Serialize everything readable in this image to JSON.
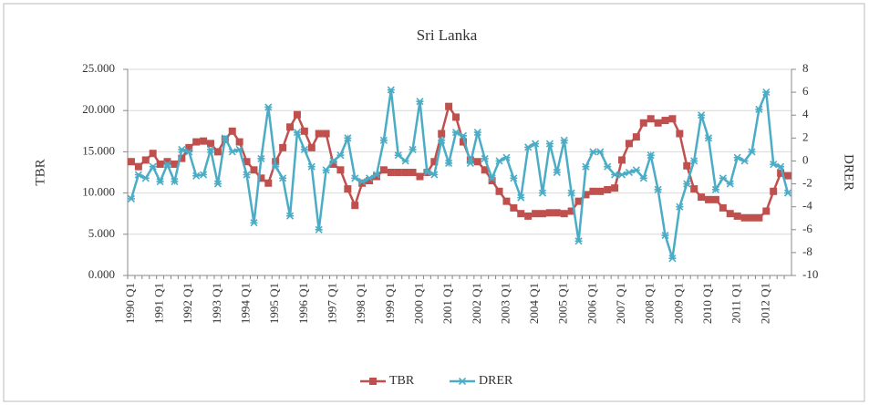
{
  "chart_data": {
    "type": "line",
    "title": "Sri Lanka",
    "y_label": "TBR",
    "y2_label": "DRER",
    "categories": [
      "1990 Q1",
      null,
      null,
      null,
      "1991 Q1",
      null,
      null,
      null,
      "1992 Q1",
      null,
      null,
      null,
      "1993 Q1",
      null,
      null,
      null,
      "1994 Q1",
      null,
      null,
      null,
      "1995 Q1",
      null,
      null,
      null,
      "1996 Q1",
      null,
      null,
      null,
      "1997 Q1",
      null,
      null,
      null,
      "1998 Q1",
      null,
      null,
      null,
      "1999 Q1",
      null,
      null,
      null,
      "2000 Q1",
      null,
      null,
      null,
      "2001 Q1",
      null,
      null,
      null,
      "2002 Q1",
      null,
      null,
      null,
      "2003 Q1",
      null,
      null,
      null,
      "2004 Q1",
      null,
      null,
      null,
      "2005 Q1",
      null,
      null,
      null,
      "2006 Q1",
      null,
      null,
      null,
      "2007 Q1",
      null,
      null,
      null,
      "2008 Q1",
      null,
      null,
      null,
      "2009 Q1",
      null,
      null,
      null,
      "2010 Q1",
      null,
      null,
      null,
      "2011 Q1",
      null,
      null,
      null,
      "2012 Q1",
      null,
      null,
      null
    ],
    "series": [
      {
        "name": "TBR",
        "color": "#c0504d",
        "marker": "square",
        "values": [
          13.8,
          13.2,
          14.0,
          14.8,
          13.5,
          13.8,
          13.5,
          14.2,
          15.5,
          16.2,
          16.3,
          16.0,
          15.0,
          16.5,
          17.5,
          16.2,
          13.8,
          12.8,
          11.8,
          11.2,
          13.8,
          15.5,
          18.0,
          19.5,
          17.5,
          15.5,
          17.2,
          17.2,
          13.5,
          12.8,
          10.5,
          8.5,
          11.2,
          11.5,
          12.0,
          12.8,
          12.5,
          12.5,
          12.5,
          12.5,
          12.0,
          12.5,
          13.8,
          17.2,
          20.5,
          19.2,
          16.2,
          14.0,
          13.8,
          12.8,
          11.5,
          10.2,
          9.0,
          8.2,
          7.5,
          7.2,
          7.5,
          7.5,
          7.6,
          7.6,
          7.5,
          7.8,
          9.0,
          9.8,
          10.2,
          10.2,
          10.4,
          10.6,
          14.0,
          16.0,
          16.8,
          18.5,
          19.0,
          18.5,
          18.8,
          19.0,
          17.2,
          13.3,
          10.5,
          9.5,
          9.2,
          9.2,
          8.2,
          7.5,
          7.2,
          7.0,
          7.0,
          7.0,
          7.8,
          10.2,
          12.4,
          12.1
        ]
      },
      {
        "name": "DRER",
        "color": "#4bacc6",
        "marker": "star",
        "axis": "y2",
        "values": [
          -3.3,
          -1.2,
          -1.5,
          -0.5,
          -1.8,
          -0.3,
          -1.8,
          1.0,
          0.8,
          -1.3,
          -1.2,
          1.0,
          -2.0,
          2.0,
          0.8,
          1.0,
          -1.2,
          -5.4,
          0.2,
          4.7,
          -0.5,
          -1.5,
          -4.8,
          2.5,
          1.0,
          -0.5,
          -6.0,
          -0.8,
          0.0,
          0.5,
          2.0,
          -1.5,
          -1.8,
          -1.5,
          -1.2,
          1.8,
          6.2,
          0.5,
          0.0,
          1.0,
          5.2,
          -1.0,
          -1.2,
          1.8,
          -0.2,
          2.5,
          2.2,
          -0.2,
          2.5,
          0.2,
          -1.5,
          0.0,
          0.3,
          -1.5,
          -3.2,
          1.2,
          1.5,
          -2.8,
          1.5,
          -1.0,
          1.8,
          -2.8,
          -7.0,
          -0.5,
          0.8,
          0.8,
          -0.5,
          -1.2,
          -1.2,
          -1.0,
          -0.8,
          -1.5,
          0.5,
          -2.5,
          -6.5,
          -8.5,
          -4.0,
          -2.0,
          0.0,
          4.0,
          2.0,
          -2.5,
          -1.5,
          -2.0,
          0.3,
          0.0,
          0.8,
          4.5,
          6.0,
          -0.3,
          -0.5,
          -2.8
        ]
      }
    ],
    "ylim": [
      0,
      25
    ],
    "yticks": [
      {
        "value": 0,
        "label": "0.000"
      },
      {
        "value": 5,
        "label": "5.000"
      },
      {
        "value": 10,
        "label": "10.000"
      },
      {
        "value": 15,
        "label": "15.000"
      },
      {
        "value": 20,
        "label": "20.000"
      },
      {
        "value": 25,
        "label": "25.000"
      }
    ],
    "y2lim": [
      -10,
      8
    ],
    "y2ticks": [
      -10,
      -8,
      -6,
      -4,
      -2,
      0,
      2,
      4,
      6,
      8
    ],
    "grid": true,
    "legend": "bottom"
  }
}
